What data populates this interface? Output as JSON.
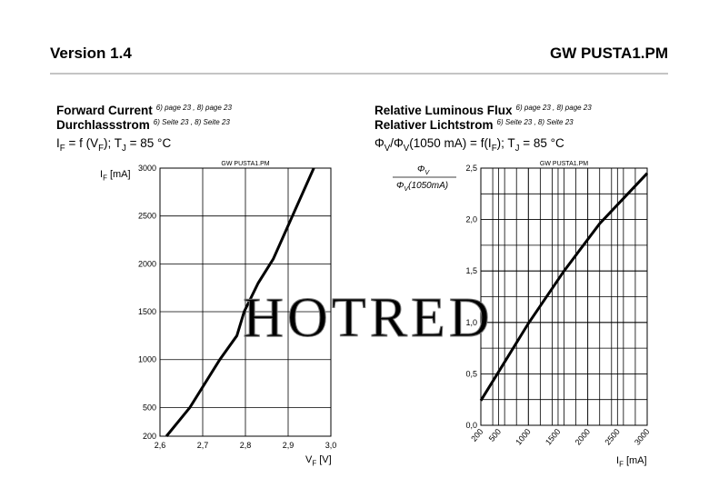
{
  "header": {
    "left": "Version 1.4",
    "right": "GW PUSTA1.PM"
  },
  "watermark": "HOTRED",
  "chart_data": [
    {
      "type": "line",
      "title": "Forward Current",
      "title_note": "6) page 23 , 8) page 23",
      "subtitle": "Durchlassstrom",
      "subtitle_note": "6) Seite 23 , 8) Seite 23",
      "formula": [
        "I",
        "F",
        " = f (V",
        "F",
        "); T",
        "J",
        " = 85 °C"
      ],
      "stamp": "GW PUSTA1.PM",
      "ylabel": [
        "I",
        "F",
        " [mA]"
      ],
      "xlabel": [
        "V",
        "F",
        " [V]"
      ],
      "x": [
        2.615,
        2.67,
        2.74,
        2.78,
        2.797,
        2.83,
        2.865,
        2.91,
        2.96
      ],
      "values": [
        200,
        500,
        1000,
        1250,
        1500,
        1800,
        2050,
        2500,
        3000
      ],
      "color": "#000000",
      "xlim": [
        2.6,
        3.0
      ],
      "xticks": [
        {
          "value": 2.6,
          "label": "2,6"
        },
        {
          "value": 2.7,
          "label": "2,7"
        },
        {
          "value": 2.8,
          "label": "2,8"
        },
        {
          "value": 2.9,
          "label": "2,9"
        },
        {
          "value": 3.0,
          "label": "3,0"
        }
      ],
      "ylim": [
        200,
        3000
      ],
      "yticks": [
        200,
        500,
        1000,
        1500,
        2000,
        2500,
        3000
      ],
      "grid": true
    },
    {
      "type": "line",
      "title": "Relative Luminous Flux",
      "title_note": "6) page 23 , 8) page 23",
      "subtitle": "Relativer Lichtstrom",
      "subtitle_note": "6) Seite 23 , 8) Seite 23",
      "formula": [
        "Φ",
        "V",
        "/Φ",
        "V",
        "(1050 mA) = f(I",
        "F",
        "); T",
        "J",
        " = 85 °C"
      ],
      "stamp": "GW PUSTA1.PM",
      "ylabel_num": [
        "Φ",
        "V"
      ],
      "ylabel_den": [
        "Φ",
        "V",
        "(1050mA)"
      ],
      "xlabel": [
        "I",
        "F",
        " [mA]"
      ],
      "x": [
        200,
        500,
        1000,
        1600,
        2200,
        3000
      ],
      "values": [
        0.24,
        0.52,
        0.99,
        1.5,
        1.96,
        2.45
      ],
      "color": "#000000",
      "xlim": [
        200,
        3000
      ],
      "xticks": [
        200,
        500,
        1000,
        1500,
        2000,
        2500,
        3000
      ],
      "ylim": [
        0,
        2.5
      ],
      "yticks": [
        {
          "value": 0,
          "label": "0,0"
        },
        {
          "value": 0.5,
          "label": "0,5"
        },
        {
          "value": 1.0,
          "label": "1,0"
        },
        {
          "value": 1.5,
          "label": "1,5"
        },
        {
          "value": 2.0,
          "label": "2,0"
        },
        {
          "value": 2.5,
          "label": "2,5"
        }
      ],
      "xgrid": [
        400,
        600,
        800,
        1000,
        1200,
        1400,
        1600,
        1800,
        2000,
        2200,
        2400,
        2600,
        2800
      ],
      "ygrid": [
        0.25,
        0.5,
        0.75,
        1.0,
        1.25,
        1.5,
        1.75,
        2.0,
        2.25
      ],
      "grid": true
    }
  ]
}
